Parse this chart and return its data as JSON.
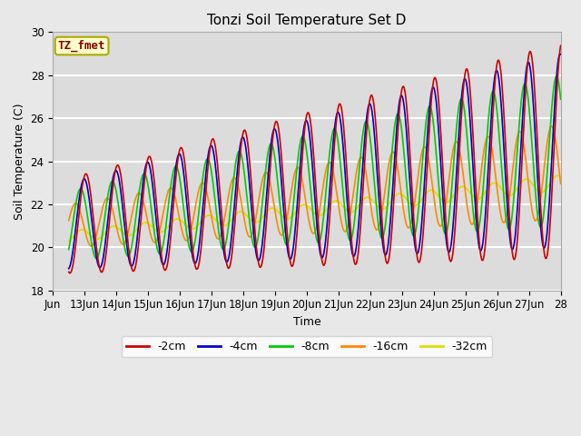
{
  "title": "Tonzi Soil Temperature Set D",
  "xlabel": "Time",
  "ylabel": "Soil Temperature (C)",
  "ylim": [
    18,
    30
  ],
  "x_tick_labels": [
    "Jun",
    "13Jun",
    "14Jun",
    "15Jun",
    "16Jun",
    "17Jun",
    "18Jun",
    "19Jun",
    "20Jun",
    "21Jun",
    "22Jun",
    "23Jun",
    "24Jun",
    "25Jun",
    "26Jun",
    "27Jun",
    "28"
  ],
  "legend_labels": [
    "-2cm",
    "-4cm",
    "-8cm",
    "-16cm",
    "-32cm"
  ],
  "line_colors": [
    "#cc0000",
    "#0000cc",
    "#00cc00",
    "#ff8800",
    "#dddd00"
  ],
  "bg_color": "#e8e8e8",
  "plot_bg_color": "#dcdcdc",
  "annotation_text": "TZ_fmet",
  "annotation_color": "#880000",
  "annotation_bg": "#ffffcc",
  "grid_color": "#ffffff",
  "fig_bg": "#e8e8e8"
}
